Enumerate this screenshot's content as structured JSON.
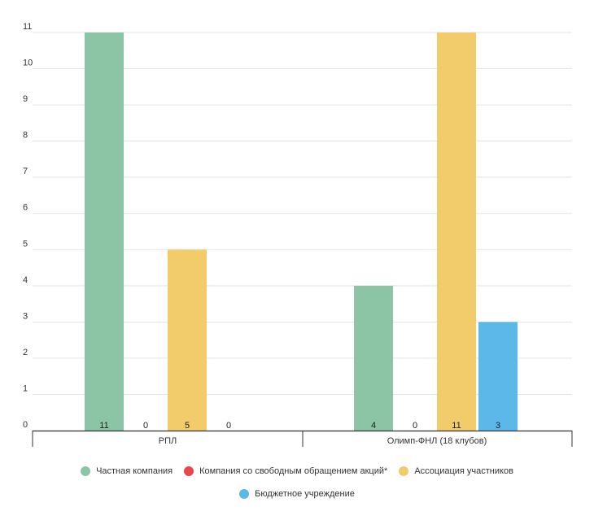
{
  "chart_data": {
    "type": "bar",
    "title": "",
    "xlabel": "",
    "ylabel": "",
    "ylim": [
      0,
      11
    ],
    "yticks": [
      0,
      1,
      2,
      3,
      4,
      5,
      6,
      7,
      8,
      9,
      10,
      11
    ],
    "grid": true,
    "legend_position": "bottom",
    "categories": [
      "РПЛ",
      "Олимп-ФНЛ (18 клубов)"
    ],
    "series": [
      {
        "name": "Частная компания",
        "color": "#8cc5a5",
        "values": [
          11,
          4
        ]
      },
      {
        "name": "Компания со свободным обращением акций*",
        "color": "#e8464b",
        "values": [
          0,
          0
        ]
      },
      {
        "name": "Ассоциация участников",
        "color": "#f2cc6a",
        "values": [
          5,
          11
        ]
      },
      {
        "name": "Бюджетное учреждение",
        "color": "#5bb8e8",
        "values": [
          0,
          3
        ]
      }
    ]
  }
}
